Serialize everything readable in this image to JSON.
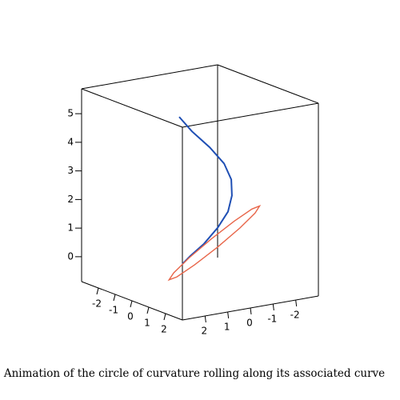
{
  "chart_data": {
    "type": "line3d",
    "title": "Animation of the circle of curvature rolling along its associated curve",
    "xlim": [
      -3,
      3
    ],
    "ylim": [
      -3,
      3
    ],
    "zlim": [
      -0.87,
      5.87
    ],
    "xticks": [
      -2,
      -1,
      0,
      1,
      2
    ],
    "yticks": [
      -2,
      -1,
      0,
      1,
      2
    ],
    "zticks": [
      0,
      1,
      2,
      3,
      4,
      5
    ],
    "box_color": "#000000",
    "series": [
      {
        "color": "#1f4fb4",
        "x": [
          -0.82,
          -0.56,
          -0.04,
          0.42,
          0.74,
          0.94,
          1.06,
          1.05,
          0.98,
          0.48,
          -0.33
        ],
        "y": [
          0.31,
          -0.06,
          -0.46,
          -0.75,
          -0.83,
          -0.71,
          -0.45,
          0,
          0.55,
          0.78,
          0.53
        ],
        "z": [
          5,
          4.5,
          4,
          3.5,
          3,
          2.5,
          2,
          1.5,
          1,
          0.5,
          0
        ]
      },
      {
        "color": "#e8664a",
        "closed": true,
        "x": [
          1.05,
          1.38,
          1.8,
          2.19,
          2.44,
          2.51,
          2.34,
          2.02,
          1.6,
          1.21,
          0.96,
          0.89
        ],
        "y": [
          -1.85,
          -1.41,
          -0.43,
          0.84,
          2.05,
          2.88,
          3.1,
          2.66,
          1.67,
          0.4,
          -0.8,
          -1.63
        ],
        "z": [
          2,
          1.89,
          1.6,
          1.2,
          0.8,
          0.51,
          0.4,
          0.51,
          0.8,
          1.2,
          1.6,
          1.89
        ]
      }
    ]
  }
}
